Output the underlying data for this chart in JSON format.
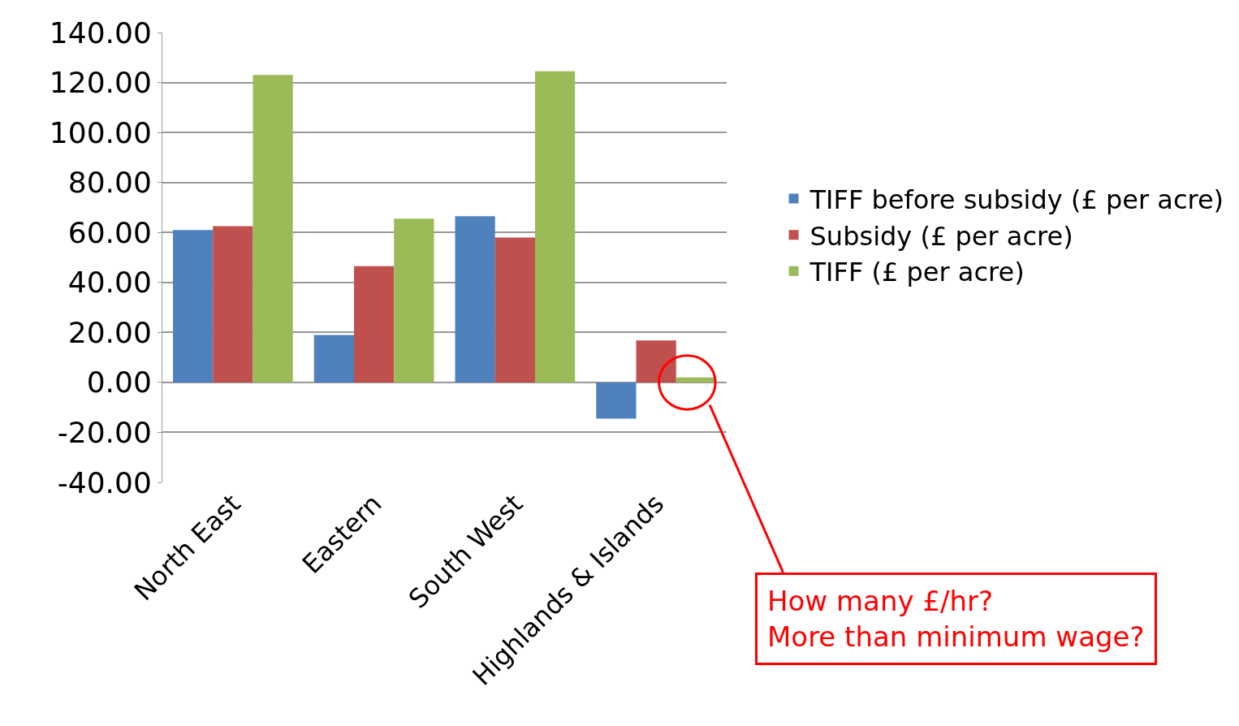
{
  "chart_data": {
    "type": "bar",
    "categories": [
      "North East",
      "Eastern",
      "South West",
      "Highlands & Islands"
    ],
    "series": [
      {
        "name": "TIFF before subsidy (£ per acre)",
        "color": "#4f81bd",
        "values": [
          61,
          19,
          66.5,
          -14.5
        ]
      },
      {
        "name": "Subsidy (£ per acre)",
        "color": "#c0504d",
        "values": [
          62.5,
          46.5,
          58,
          16.8
        ]
      },
      {
        "name": "TIFF (£ per acre)",
        "color": "#9bbb59",
        "values": [
          123,
          65.5,
          124.5,
          2
        ]
      }
    ],
    "ylim": [
      -40,
      140
    ],
    "yticks": [
      {
        "value": -40,
        "label": "-40.00"
      },
      {
        "value": -20,
        "label": "-20.00"
      },
      {
        "value": 0,
        "label": "0.00"
      },
      {
        "value": 20,
        "label": "20.00"
      },
      {
        "value": 40,
        "label": "40.00"
      },
      {
        "value": 60,
        "label": "60.00"
      },
      {
        "value": 80,
        "label": "80.00"
      },
      {
        "value": 100,
        "label": "100.00"
      },
      {
        "value": 120,
        "label": "120.00"
      },
      {
        "value": 140,
        "label": "140.00"
      }
    ],
    "grid": "y",
    "legend": "right",
    "annotations": [
      "How many £/hr?\nMore than minimum wage?"
    ]
  }
}
